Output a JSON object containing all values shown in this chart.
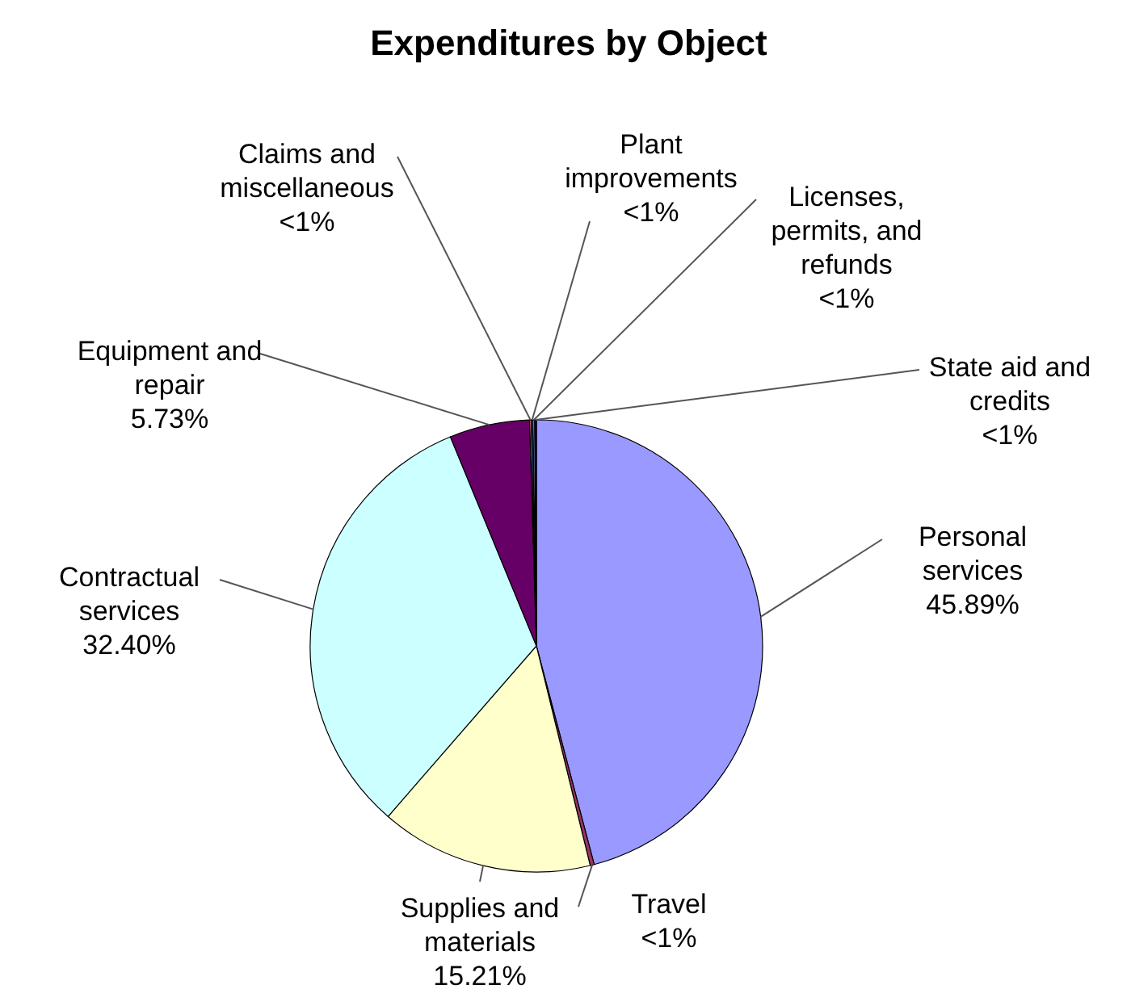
{
  "chart_data": {
    "type": "pie",
    "title": "Expenditures by Object",
    "categories": [
      "Personal services",
      "Travel",
      "Supplies and materials",
      "Contractual services",
      "Equipment and repair",
      "Claims and miscellaneous",
      "Plant improvements",
      "Licenses, permits, and refunds",
      "State aid and credits"
    ],
    "values": [
      45.89,
      0.29,
      15.21,
      32.4,
      5.73,
      0.12,
      0.12,
      0.12,
      0.12
    ],
    "value_labels": [
      "45.89%",
      "<1%",
      "15.21%",
      "32.40%",
      "5.73%",
      "<1%",
      "<1%",
      "<1%",
      "<1%"
    ],
    "colors": [
      "#9999ff",
      "#993366",
      "#ffffcc",
      "#ccffff",
      "#660066",
      "#ff8080",
      "#0066cc",
      "#ccccff",
      "#000080"
    ],
    "legend": false
  }
}
